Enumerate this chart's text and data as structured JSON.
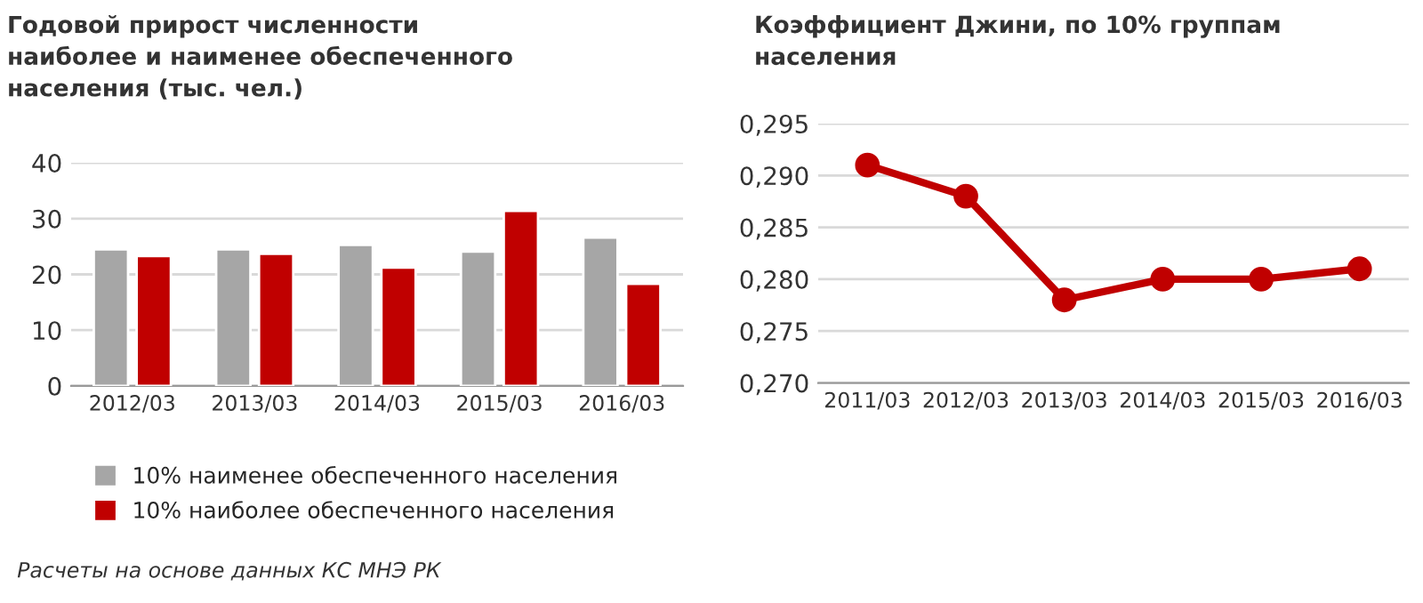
{
  "chart_data": [
    {
      "type": "bar",
      "title": "Годовой прирост численности\nнаиболее и наименее обеспеченного\nнаселения (тыс. чел.)",
      "categories": [
        "2012/03",
        "2013/03",
        "2014/03",
        "2015/03",
        "2016/03"
      ],
      "series": [
        {
          "name": "10% наименее обеспеченного населения",
          "color": "#a6a6a6",
          "values": [
            24.5,
            24.5,
            25.3,
            24.1,
            26.6
          ]
        },
        {
          "name": "10% наиболее обеспеченного населения",
          "color": "#c00000",
          "values": [
            23.3,
            23.7,
            21.2,
            31.4,
            18.3
          ]
        }
      ],
      "ylim": [
        0,
        40
      ],
      "yticks": [
        0,
        10,
        20,
        30,
        40
      ],
      "grid": "y",
      "legend": "bottom",
      "annotations": [
        "Расчеты на основе данных КС МНЭ РК"
      ]
    },
    {
      "type": "line",
      "title": "Коэффициент Джини, по 10% группам\nнаселения",
      "categories": [
        "2011/03",
        "2012/03",
        "2013/03",
        "2014/03",
        "2015/03",
        "2016/03"
      ],
      "series": [
        {
          "color": "#c00000",
          "values": [
            0.291,
            0.288,
            0.278,
            0.28,
            0.28,
            0.281
          ]
        }
      ],
      "ylim": [
        0.27,
        0.295
      ],
      "yticks": [
        {
          "value": 0.27,
          "label": "0,270"
        },
        {
          "value": 0.275,
          "label": "0,275"
        },
        {
          "value": 0.28,
          "label": "0,280"
        },
        {
          "value": 0.285,
          "label": "0,285"
        },
        {
          "value": 0.29,
          "label": "0,290"
        },
        {
          "value": 0.295,
          "label": "0,295"
        }
      ],
      "grid": "y",
      "marker": "circle",
      "line_style": "solid"
    }
  ]
}
